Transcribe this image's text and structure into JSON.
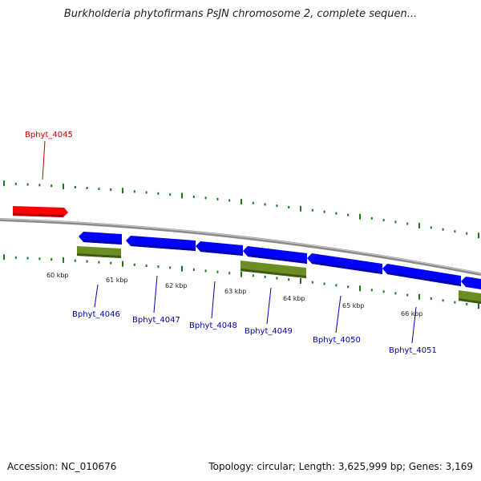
{
  "title": "Burkholderia phytofirmans PsJN chromosome 2, complete sequen...",
  "accession": "Accession: NC_010676",
  "topology": "Topology: circular; Length: 3,625,999 bp; Genes: 3,169",
  "colors": {
    "backbone": "#8a8a8a",
    "forward_gene": "#ff0000",
    "reverse_gene": "#0000ff",
    "other_feature": "#6b8e23",
    "tick": "#1a7a1a",
    "forward_label": "#cc0000",
    "reverse_label": "#0000aa"
  },
  "ticks": [
    {
      "label": "60 kbp"
    },
    {
      "label": "61 kbp"
    },
    {
      "label": "62 kbp"
    },
    {
      "label": "63 kbp"
    },
    {
      "label": "64 kbp"
    },
    {
      "label": "65 kbp"
    },
    {
      "label": "66 kbp"
    }
  ],
  "genes": [
    {
      "name": "Bphyt_4045",
      "strand": "forward"
    },
    {
      "name": "Bphyt_4046",
      "strand": "reverse"
    },
    {
      "name": "Bphyt_4047",
      "strand": "reverse"
    },
    {
      "name": "Bphyt_4048",
      "strand": "reverse"
    },
    {
      "name": "Bphyt_4049",
      "strand": "reverse"
    },
    {
      "name": "Bphyt_4050",
      "strand": "reverse"
    },
    {
      "name": "Bphyt_4051",
      "strand": "reverse"
    }
  ]
}
